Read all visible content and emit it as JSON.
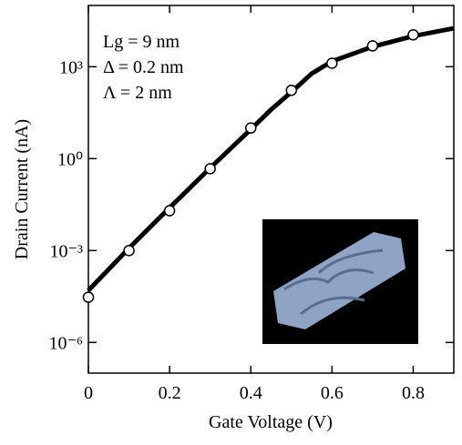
{
  "chart_data": {
    "type": "line",
    "x_label": "Gate Voltage (V)",
    "y_label": "Drain Current (nA)",
    "annotations": [
      "Lg = 9 nm",
      "Δ = 0.2 nm",
      "Λ = 2 nm"
    ],
    "log_y": true,
    "xlim": [
      0,
      0.9
    ],
    "ylim": [
      1e-07,
      100000
    ],
    "xticks": [
      0,
      0.2,
      0.4,
      0.6,
      0.8
    ],
    "yticks": [
      {
        "value": 1e-06,
        "label": "10⁻⁶"
      },
      {
        "value": 0.001,
        "label": "10⁻³"
      },
      {
        "value": 1,
        "label": "10⁰"
      },
      {
        "value": 1000,
        "label": "10³"
      }
    ],
    "series": [
      {
        "color": "#000000",
        "style": "line",
        "x": [
          0,
          0.1,
          0.2,
          0.3,
          0.4,
          0.45,
          0.5,
          0.55,
          0.6,
          0.7,
          0.8,
          0.9
        ],
        "values": [
          5e-05,
          0.0012,
          0.025,
          0.5,
          9,
          40,
          150,
          600,
          1500,
          4500,
          10000,
          18000
        ]
      },
      {
        "color": "#000000",
        "style": "markers",
        "x": [
          0,
          0.1,
          0.2,
          0.3,
          0.4,
          0.5,
          0.6,
          0.7,
          0.8
        ],
        "values": [
          3e-05,
          0.001,
          0.02,
          0.47,
          10,
          170,
          1300,
          4800,
          11000
        ]
      }
    ]
  }
}
